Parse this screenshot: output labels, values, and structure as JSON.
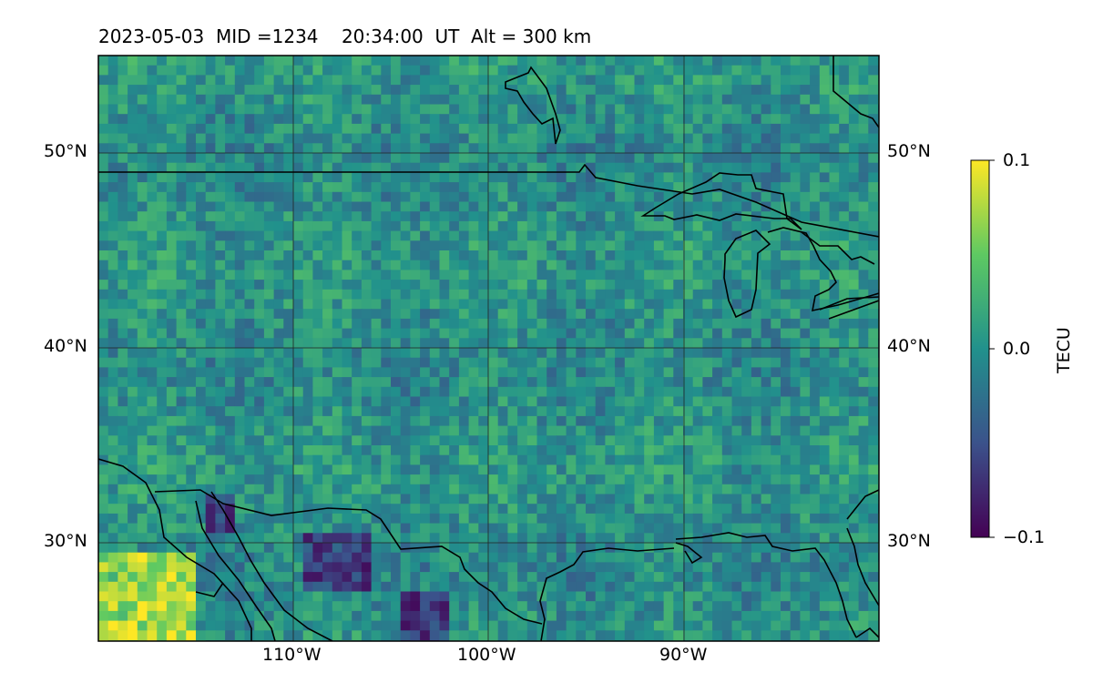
{
  "header": {
    "date": "2023-05-03",
    "mid": "MID =1234",
    "time": "20:34:00",
    "ut": "UT",
    "alt": "Alt = 300 km"
  },
  "map": {
    "lat_labels": [
      "50°N",
      "40°N",
      "30°N"
    ],
    "lon_labels": [
      "110°W",
      "100°W",
      "90°W"
    ],
    "extent": {
      "lon_min": -120,
      "lon_max": -80,
      "lat_min": 25,
      "lat_max": 55
    }
  },
  "colorbar": {
    "label": "TECU",
    "ticks": [
      "0.1",
      "0.0",
      "−0.1"
    ],
    "vmin": -0.1,
    "vmax": 0.1,
    "colormap": [
      "#440154",
      "#3b528b",
      "#21918c",
      "#5ec962",
      "#fde725"
    ]
  }
}
